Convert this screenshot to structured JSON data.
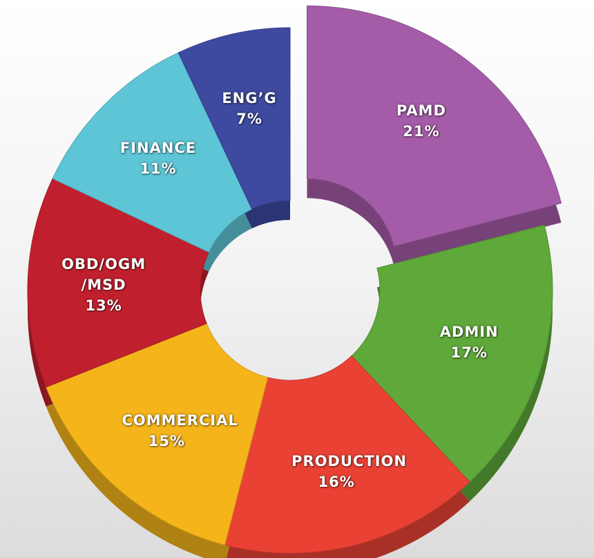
{
  "chart_data": {
    "type": "donut",
    "categories": [
      "PAMD",
      "ADMIN",
      "PRODUCTION",
      "COMMERCIAL",
      "OBD/OGM /MSD",
      "FINANCE",
      "ENG’G"
    ],
    "values": [
      21,
      17,
      16,
      15,
      13,
      11,
      7
    ],
    "value_labels": [
      "21%",
      "17%",
      "16%",
      "15%",
      "13%",
      "11%",
      "7%"
    ],
    "colors": [
      "#a45ca8",
      "#5fa83a",
      "#e94235",
      "#f5b51a",
      "#c0202e",
      "#5ec5d6",
      "#3d4aa0"
    ]
  }
}
